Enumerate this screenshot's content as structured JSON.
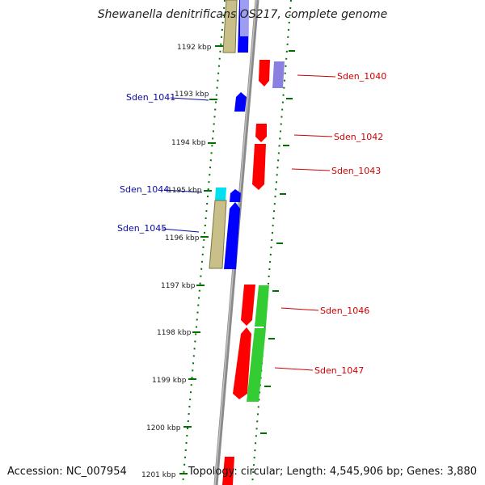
{
  "title": "Shewanella denitrificans OS217, complete genome",
  "accession": "Accession: NC_007954",
  "topology": "Topology: circular; Length: 4,545,906 bp; Genes: 3,880",
  "colors": {
    "forward_red": "#ff0000",
    "reverse_blue": "#0000ff",
    "olive": "#c8c088",
    "cyan": "#00e0f0",
    "green": "#33cc33",
    "lavender": "#8a80e0",
    "light_blue": "#b8b8f0",
    "backbone": "#8a8a8a",
    "tick_green": "#007000",
    "label_red": "#d00000",
    "label_blue": "#0a0aa0"
  },
  "kbp_labels": [
    "1192 kbp",
    "1193 kbp",
    "1194 kbp",
    "1195 kbp",
    "1196 kbp",
    "1197 kbp",
    "1198 kbp",
    "1199 kbp",
    "1200 kbp",
    "1201 kbp"
  ],
  "genes_left": [
    {
      "name": "Sden_1041"
    },
    {
      "name": "Sden_1044"
    },
    {
      "name": "Sden_1045"
    }
  ],
  "genes_right": [
    {
      "name": "Sden_1040"
    },
    {
      "name": "Sden_1042"
    },
    {
      "name": "Sden_1043"
    },
    {
      "name": "Sden_1046"
    },
    {
      "name": "Sden_1047"
    }
  ]
}
